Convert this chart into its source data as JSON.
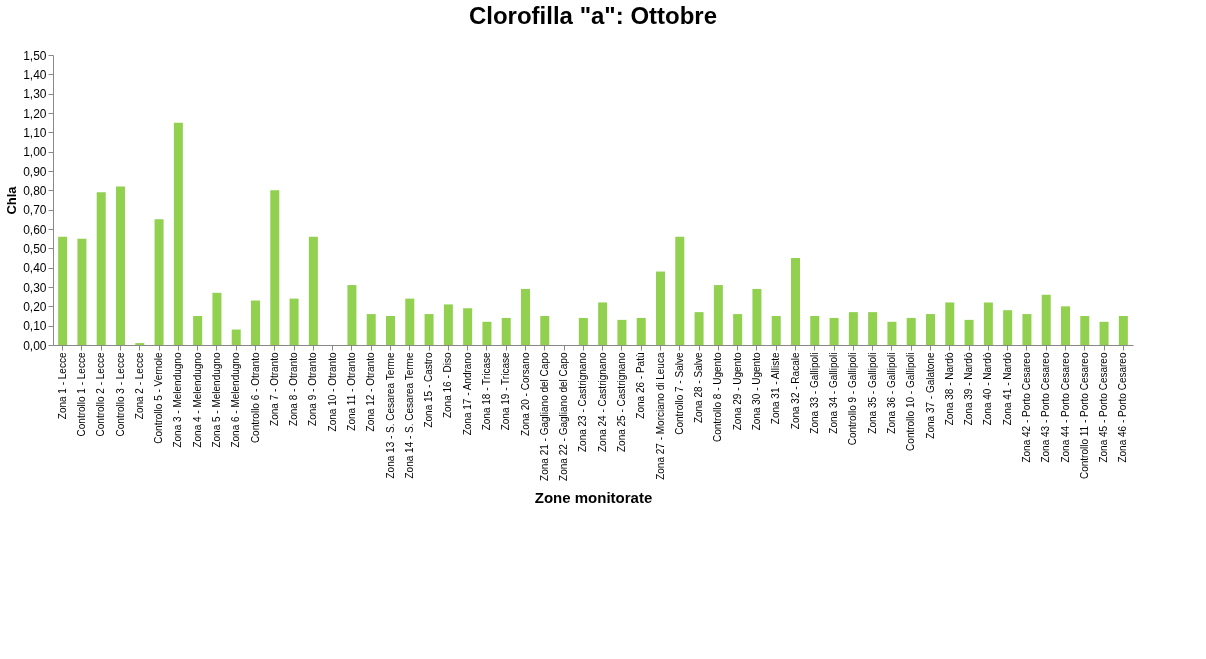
{
  "chart_data": {
    "type": "bar",
    "title": "Clorofilla \"a\": Ottobre",
    "xlabel": "Zone monitorate",
    "ylabel": "Chla",
    "categories": [
      "Zona 1 - Lecce",
      "Controllo 1 - Lecce",
      "Controllo 2 - Lecce",
      "Controllo 3 - Lecce",
      "Zona 2 - Lecce",
      "Controllo 5 - Vernole",
      "Zona 3 - Melendugno",
      "Zona 4 - Melendugno",
      "Zona 5 - Melendugno",
      "Zona 6 - Melendugno",
      "Controllo 6 - Otranto",
      "Zona 7 - Otranto",
      "Zona 8 - Otranto",
      "Zona 9 - Otranto",
      "Zona 10 - Otranto",
      "Zona 11 - Otranto",
      "Zona 12 - Otranto",
      "Zona 13 - S. Cesarea Terme",
      "Zona 14 - S. Cesarea Terme",
      "Zona 15 - Castro",
      "Zona 16 - Diso",
      "Zona 17 - Andrano",
      "Zona 18 - Tricase",
      "Zona 19 - Tricase",
      "Zona 20 - Corsano",
      "Zona 21 - Gagliano del Capo",
      "Zona 22 - Gagliano del Capo",
      "Zona 23 - Castrignano",
      "Zona 24 - Castrignano",
      "Zona 25 - Castrignano",
      "Zona 26 - Patù",
      "Zona 27 - Morciano di Leuca",
      "Controllo 7 - Salve",
      "Zona 28 - Salve",
      "Controllo 8 - Ugento",
      "Zona 29 - Ugento",
      "Zona 30 - Ugento",
      "Zona 31 - Alliste",
      "Zona 32 - Racale",
      "Zona 33 - Gallipoli",
      "Zona 34 - Gallipoli",
      "Controllo 9 - Gallipoli",
      "Zona 35 - Gallipoli",
      "Zona 36 - Gallipoli",
      "Controllo 10 - Gallipoli",
      "Zona 37 - Galatone",
      "Zona 38 - Nardò",
      "Zona 39 - Nardò",
      "Zona 40 - Nardò",
      "Zona 41 - Nardò",
      "Zona 42 - Porto Cesareo",
      "Zona 43 - Porto Cesareo",
      "Zona 44 - Porto Cesareo",
      "Controllo 11 - Porto Cesareo",
      "Zona 45 - Porto Cesareo",
      "Zona 46 - Porto Cesareo"
    ],
    "values": [
      0.56,
      0.55,
      0.79,
      0.82,
      0.01,
      0.65,
      1.15,
      0.15,
      0.27,
      0.08,
      0.23,
      0.8,
      0.24,
      0.56,
      null,
      0.31,
      0.16,
      0.15,
      0.24,
      0.16,
      0.21,
      0.19,
      0.12,
      0.14,
      0.29,
      0.15,
      null,
      0.14,
      0.22,
      0.13,
      0.14,
      0.38,
      0.56,
      0.17,
      0.31,
      0.16,
      0.29,
      0.15,
      0.45,
      0.15,
      0.14,
      0.17,
      0.17,
      0.12,
      0.14,
      0.16,
      0.22,
      0.13,
      0.22,
      0.18,
      0.16,
      0.26,
      0.2,
      0.15,
      0.12,
      0.15
    ],
    "color": "#92d050",
    "ylim": [
      0,
      1.5
    ],
    "yticks": [
      {
        "value": 0,
        "label": "0,00"
      },
      {
        "value": 0.1,
        "label": "0,10"
      },
      {
        "value": 0.2,
        "label": "0,20"
      },
      {
        "value": 0.3,
        "label": "0,30"
      },
      {
        "value": 0.4,
        "label": "0,40"
      },
      {
        "value": 0.5,
        "label": "0,50"
      },
      {
        "value": 0.6,
        "label": "0,60"
      },
      {
        "value": 0.7,
        "label": "0,70"
      },
      {
        "value": 0.8,
        "label": "0,80"
      },
      {
        "value": 0.9,
        "label": "0,90"
      },
      {
        "value": 1.0,
        "label": "1,00"
      },
      {
        "value": 1.1,
        "label": "1,10"
      },
      {
        "value": 1.2,
        "label": "1,20"
      },
      {
        "value": 1.3,
        "label": "1,30"
      },
      {
        "value": 1.4,
        "label": "1,40"
      },
      {
        "value": 1.5,
        "label": "1,50"
      }
    ],
    "grid": false
  }
}
